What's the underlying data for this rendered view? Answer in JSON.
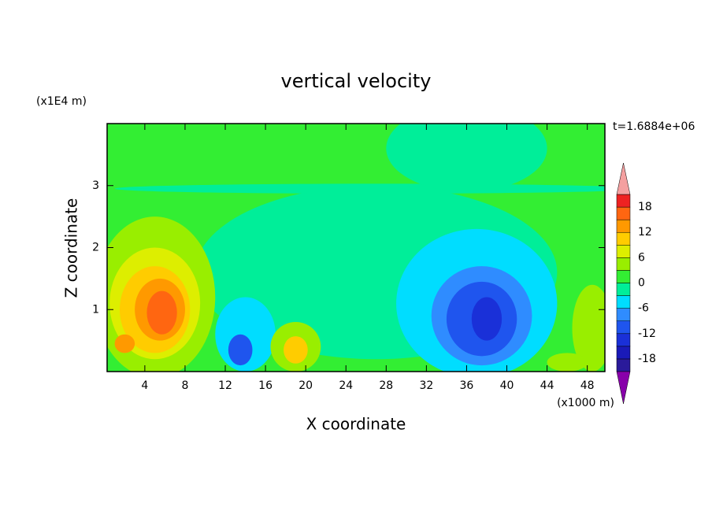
{
  "chart_data": {
    "type": "contour",
    "title": "vertical velocity",
    "xlabel": "X coordinate",
    "ylabel": "Z coordinate",
    "xunit": "(x1000 m)",
    "yunit": "(x1E4 m)",
    "time_label": "t=1.6884e+06",
    "xlim": [
      0.25,
      49.75
    ],
    "ylim": [
      0,
      4
    ],
    "xticks": [
      4,
      8,
      12,
      16,
      20,
      24,
      28,
      32,
      36,
      40,
      44,
      48
    ],
    "yticks": [
      1,
      2,
      3
    ],
    "levels": [
      -21,
      -18,
      -15,
      -12,
      -9,
      -6,
      -3,
      0,
      3,
      6,
      9,
      12,
      15,
      18,
      21
    ],
    "colors": [
      "#2a1a9a",
      "#1a1ab8",
      "#1a30d8",
      "#1f55ee",
      "#2f8cff",
      "#00ddff",
      "#00ee99",
      "#33ee33",
      "#99ee00",
      "#ddee00",
      "#ffcc00",
      "#ff9900",
      "#ff6611",
      "#ee2222"
    ],
    "under_color": "#8800aa",
    "over_color": "#f4a0a0",
    "cticks": [
      -18,
      -12,
      -6,
      0,
      6,
      12,
      18
    ],
    "regions": [
      {
        "x": 25,
        "z": 2,
        "dx": 40,
        "dz": 4,
        "value": 1.5
      },
      {
        "x": 27,
        "z": 1.6,
        "dx": 18,
        "dz": 1.4,
        "value": -1.5
      },
      {
        "x": 27,
        "z": 2.95,
        "dx": 26,
        "dz": 0.08,
        "value": -1.5
      },
      {
        "x": 36,
        "z": 3.6,
        "dx": 8,
        "dz": 0.7,
        "value": -1.5
      },
      {
        "x": 5,
        "z": 1.2,
        "dx": 6,
        "dz": 1.3,
        "value": 4.5
      },
      {
        "x": 5,
        "z": 1.1,
        "dx": 4.5,
        "dz": 0.9,
        "value": 7.5
      },
      {
        "x": 5,
        "z": 1.0,
        "dx": 3.5,
        "dz": 0.7,
        "value": 10.5
      },
      {
        "x": 5.5,
        "z": 1.0,
        "dx": 2.5,
        "dz": 0.5,
        "value": 13.5
      },
      {
        "x": 5.7,
        "z": 0.95,
        "dx": 1.5,
        "dz": 0.35,
        "value": 16.5
      },
      {
        "x": 2,
        "z": 0.45,
        "dx": 1,
        "dz": 0.15,
        "value": 13.5
      },
      {
        "x": 37,
        "z": 1.1,
        "dx": 8,
        "dz": 1.2,
        "value": -4.5
      },
      {
        "x": 37.5,
        "z": 0.9,
        "dx": 5,
        "dz": 0.8,
        "value": -7.5
      },
      {
        "x": 37.5,
        "z": 0.85,
        "dx": 3.5,
        "dz": 0.6,
        "value": -10.5
      },
      {
        "x": 38,
        "z": 0.85,
        "dx": 1.5,
        "dz": 0.35,
        "value": -13.5
      },
      {
        "x": 14,
        "z": 0.6,
        "dx": 3,
        "dz": 0.6,
        "value": -4.5
      },
      {
        "x": 13.5,
        "z": 0.35,
        "dx": 1.2,
        "dz": 0.25,
        "value": -10.5
      },
      {
        "x": 19,
        "z": 0.4,
        "dx": 2.5,
        "dz": 0.4,
        "value": 4.5
      },
      {
        "x": 19,
        "z": 0.35,
        "dx": 1.2,
        "dz": 0.22,
        "value": 10.5
      },
      {
        "x": 48.5,
        "z": 0.7,
        "dx": 2,
        "dz": 0.7,
        "value": 4.5
      },
      {
        "x": 46,
        "z": 0.15,
        "dx": 2,
        "dz": 0.15,
        "value": 4.5
      }
    ]
  }
}
